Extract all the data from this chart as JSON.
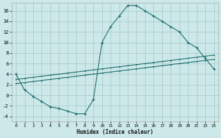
{
  "xlabel": "Humidex (Indice chaleur)",
  "bg_color": "#cce8e8",
  "grid_color": "#aacccc",
  "line_color": "#1a6b6b",
  "xlim": [
    -0.5,
    23.5
  ],
  "ylim": [
    -5,
    17.5
  ],
  "xticks": [
    0,
    1,
    2,
    3,
    4,
    5,
    6,
    7,
    8,
    9,
    10,
    11,
    12,
    13,
    14,
    15,
    16,
    17,
    18,
    19,
    20,
    21,
    22,
    23
  ],
  "yticks": [
    -4,
    -2,
    0,
    2,
    4,
    6,
    8,
    10,
    12,
    14,
    16
  ],
  "series1_x": [
    0,
    1,
    2,
    3,
    4,
    5,
    6,
    7,
    8,
    9,
    10,
    11,
    12,
    13,
    14,
    15,
    16,
    17,
    18,
    19,
    20,
    21,
    22,
    23
  ],
  "series1_y": [
    4,
    1,
    -0.2,
    -1.2,
    -2.2,
    -2.5,
    -3.0,
    -3.5,
    -3.5,
    -0.8,
    10,
    13,
    15,
    17,
    17,
    16,
    15,
    14,
    13,
    12,
    10,
    9,
    7,
    5
  ],
  "series2_x": [
    0,
    1,
    2,
    3,
    4,
    5,
    6,
    7,
    8,
    9,
    10,
    11,
    12,
    13,
    14,
    15,
    16,
    17,
    18,
    19,
    20,
    21,
    22,
    23
  ],
  "series2_y": [
    2.2,
    2.4,
    2.6,
    2.8,
    3.0,
    3.2,
    3.4,
    3.6,
    3.8,
    4.0,
    4.2,
    4.4,
    4.6,
    4.8,
    5.0,
    5.2,
    5.4,
    5.6,
    5.8,
    6.0,
    6.2,
    6.4,
    6.6,
    6.8
  ],
  "series3_x": [
    0,
    1,
    2,
    3,
    4,
    5,
    6,
    7,
    8,
    9,
    10,
    11,
    12,
    13,
    14,
    15,
    16,
    17,
    18,
    19,
    20,
    21,
    22,
    23
  ],
  "series3_y": [
    3.0,
    3.2,
    3.4,
    3.6,
    3.8,
    4.0,
    4.2,
    4.4,
    4.6,
    4.8,
    5.0,
    5.2,
    5.4,
    5.6,
    5.8,
    6.0,
    6.2,
    6.4,
    6.6,
    6.8,
    7.0,
    7.2,
    7.4,
    7.6
  ]
}
